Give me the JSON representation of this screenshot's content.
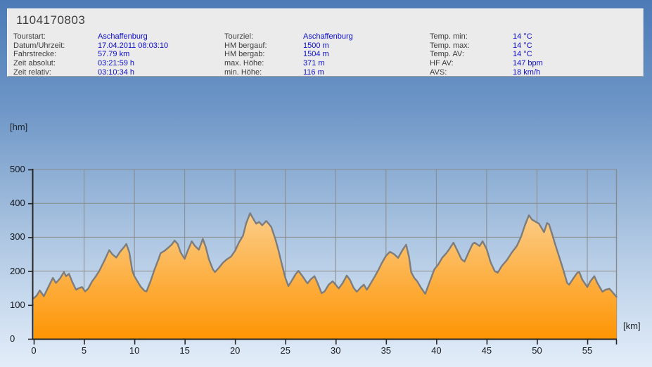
{
  "header": {
    "title": "1104170803",
    "columns": [
      {
        "rows": [
          {
            "label": "Tourstart:",
            "value": "Aschaffenburg"
          },
          {
            "label": "Datum/Uhrzeit:",
            "value": "17.04.2011 08:03:10"
          },
          {
            "label": "Fahrstrecke:",
            "value": "57.79 km"
          },
          {
            "label": "Zeit absolut:",
            "value": "03:21:59 h"
          },
          {
            "label": "Zeit relativ:",
            "value": "03:10:34 h"
          }
        ]
      },
      {
        "rows": [
          {
            "label": "Tourziel:",
            "value": "Aschaffenburg"
          },
          {
            "label": "HM bergauf:",
            "value": "1500 m"
          },
          {
            "label": "HM bergab:",
            "value": "1504 m"
          },
          {
            "label": "max. Höhe:",
            "value": "371 m"
          },
          {
            "label": "min. Höhe:",
            "value": "116 m"
          }
        ]
      },
      {
        "rows": [
          {
            "label": "Temp. min:",
            "value": "14 °C"
          },
          {
            "label": "Temp. max:",
            "value": "14 °C"
          },
          {
            "label": "Temp. AV:",
            "value": "14 °C"
          },
          {
            "label": "HF AV:",
            "value": "147 bpm"
          },
          {
            "label": "AVS:",
            "value": "18 km/h"
          }
        ]
      }
    ]
  },
  "chart_data": {
    "type": "area",
    "title": "",
    "xlabel": "[km]",
    "ylabel": "[hm]",
    "x_ticks": [
      0,
      5,
      10,
      15,
      20,
      25,
      30,
      35,
      40,
      45,
      50,
      55
    ],
    "y_ticks": [
      0,
      100,
      200,
      300,
      400,
      500
    ],
    "xlim": [
      0,
      57.95
    ],
    "ylim": [
      0,
      500
    ],
    "grid": true,
    "series_name": "elevation profile (hm vs km)",
    "profile_km_hm": [
      [
        0,
        120
      ],
      [
        0.3,
        128
      ],
      [
        0.6,
        143
      ],
      [
        1,
        126
      ],
      [
        1.4,
        150
      ],
      [
        1.9,
        180
      ],
      [
        2.2,
        165
      ],
      [
        2.6,
        178
      ],
      [
        3,
        197
      ],
      [
        3.2,
        185
      ],
      [
        3.5,
        192
      ],
      [
        3.8,
        170
      ],
      [
        4.2,
        145
      ],
      [
        4.5,
        150
      ],
      [
        4.8,
        153
      ],
      [
        5.1,
        140
      ],
      [
        5.4,
        148
      ],
      [
        5.8,
        170
      ],
      [
        6.1,
        182
      ],
      [
        6.5,
        200
      ],
      [
        7,
        230
      ],
      [
        7.5,
        262
      ],
      [
        7.8,
        250
      ],
      [
        8.2,
        240
      ],
      [
        8.6,
        258
      ],
      [
        9,
        272
      ],
      [
        9.2,
        280
      ],
      [
        9.5,
        255
      ],
      [
        9.8,
        200
      ],
      [
        10,
        185
      ],
      [
        10.3,
        170
      ],
      [
        10.6,
        155
      ],
      [
        11,
        142
      ],
      [
        11.2,
        140
      ],
      [
        11.6,
        170
      ],
      [
        12,
        205
      ],
      [
        12.4,
        235
      ],
      [
        12.6,
        253
      ],
      [
        13,
        260
      ],
      [
        13.4,
        270
      ],
      [
        13.7,
        278
      ],
      [
        14,
        290
      ],
      [
        14.3,
        280
      ],
      [
        14.6,
        255
      ],
      [
        15,
        236
      ],
      [
        15.3,
        260
      ],
      [
        15.7,
        288
      ],
      [
        16,
        275
      ],
      [
        16.4,
        263
      ],
      [
        16.8,
        295
      ],
      [
        17.1,
        270
      ],
      [
        17.4,
        235
      ],
      [
        17.8,
        205
      ],
      [
        18,
        197
      ],
      [
        18.4,
        210
      ],
      [
        18.8,
        225
      ],
      [
        19.2,
        235
      ],
      [
        19.6,
        243
      ],
      [
        20,
        260
      ],
      [
        20.4,
        285
      ],
      [
        20.8,
        305
      ],
      [
        21.1,
        340
      ],
      [
        21.5,
        371
      ],
      [
        21.8,
        355
      ],
      [
        22.1,
        340
      ],
      [
        22.4,
        345
      ],
      [
        22.7,
        335
      ],
      [
        23.1,
        348
      ],
      [
        23.4,
        338
      ],
      [
        23.6,
        330
      ],
      [
        24,
        295
      ],
      [
        24.3,
        263
      ],
      [
        24.7,
        215
      ],
      [
        25,
        180
      ],
      [
        25.3,
        156
      ],
      [
        25.6,
        170
      ],
      [
        26,
        190
      ],
      [
        26.3,
        201
      ],
      [
        26.7,
        185
      ],
      [
        27,
        172
      ],
      [
        27.2,
        164
      ],
      [
        27.5,
        175
      ],
      [
        27.9,
        185
      ],
      [
        28.2,
        165
      ],
      [
        28.6,
        135
      ],
      [
        28.9,
        140
      ],
      [
        29.3,
        160
      ],
      [
        29.7,
        170
      ],
      [
        30,
        160
      ],
      [
        30.3,
        149
      ],
      [
        30.7,
        165
      ],
      [
        31.1,
        187
      ],
      [
        31.4,
        175
      ],
      [
        31.8,
        150
      ],
      [
        32.1,
        139
      ],
      [
        32.5,
        152
      ],
      [
        32.8,
        160
      ],
      [
        33.1,
        145
      ],
      [
        33.5,
        165
      ],
      [
        33.9,
        185
      ],
      [
        34.2,
        201
      ],
      [
        34.6,
        225
      ],
      [
        35,
        245
      ],
      [
        35.4,
        257
      ],
      [
        35.8,
        250
      ],
      [
        36.2,
        239
      ],
      [
        36.6,
        260
      ],
      [
        37,
        278
      ],
      [
        37.3,
        240
      ],
      [
        37.5,
        197
      ],
      [
        37.8,
        180
      ],
      [
        38.1,
        170
      ],
      [
        38.5,
        150
      ],
      [
        38.9,
        133
      ],
      [
        39.3,
        165
      ],
      [
        39.8,
        205
      ],
      [
        40.2,
        220
      ],
      [
        40.6,
        240
      ],
      [
        41,
        253
      ],
      [
        41.4,
        270
      ],
      [
        41.7,
        284
      ],
      [
        42.1,
        260
      ],
      [
        42.5,
        235
      ],
      [
        42.8,
        228
      ],
      [
        43.2,
        255
      ],
      [
        43.6,
        280
      ],
      [
        43.8,
        284
      ],
      [
        44.1,
        278
      ],
      [
        44.3,
        274
      ],
      [
        44.6,
        288
      ],
      [
        45,
        265
      ],
      [
        45.4,
        226
      ],
      [
        45.8,
        200
      ],
      [
        46.1,
        195
      ],
      [
        46.5,
        215
      ],
      [
        47,
        232
      ],
      [
        47.5,
        255
      ],
      [
        48,
        274
      ],
      [
        48.4,
        300
      ],
      [
        48.8,
        335
      ],
      [
        49.2,
        365
      ],
      [
        49.5,
        352
      ],
      [
        49.9,
        345
      ],
      [
        50.2,
        340
      ],
      [
        50.5,
        325
      ],
      [
        50.7,
        315
      ],
      [
        51,
        342
      ],
      [
        51.2,
        338
      ],
      [
        51.5,
        310
      ],
      [
        51.8,
        280
      ],
      [
        52.2,
        243
      ],
      [
        52.6,
        205
      ],
      [
        53,
        165
      ],
      [
        53.2,
        160
      ],
      [
        53.6,
        178
      ],
      [
        54,
        195
      ],
      [
        54.2,
        197
      ],
      [
        54.5,
        175
      ],
      [
        55,
        153
      ],
      [
        55.3,
        170
      ],
      [
        55.7,
        185
      ],
      [
        56,
        165
      ],
      [
        56.5,
        139
      ],
      [
        56.8,
        145
      ],
      [
        57.2,
        148
      ],
      [
        57.5,
        138
      ],
      [
        57.9,
        124
      ]
    ]
  },
  "theme": {
    "page_top": "#4b7ab6",
    "page_bottom": "#e3edf9",
    "panel_bg": "#ebebeb",
    "label_dark": "#3c3c3c",
    "value_blue": "#0b0bd0",
    "grid_grey": "#8a8a8a",
    "axis_dark": "#262626",
    "curve_stroke": "#7d7d7d",
    "fill_top": "#fde0ac",
    "fill_mid": "#fcc87e",
    "fill_bottom": "#fe9503"
  }
}
